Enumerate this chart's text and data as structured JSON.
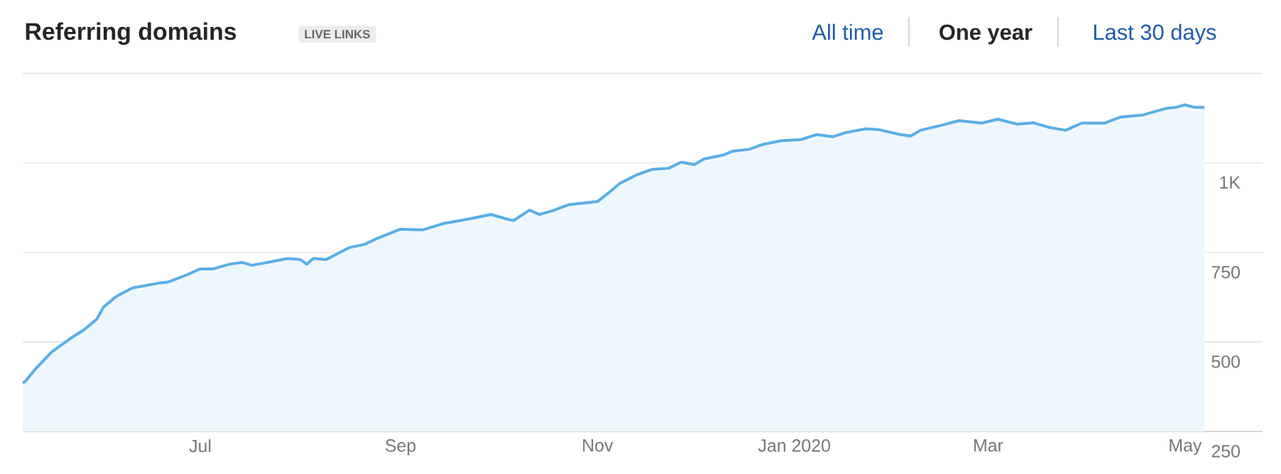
{
  "chart_data": {
    "type": "area",
    "title": "Referring domains",
    "annotations": [
      "LIVE LINKS",
      "All time",
      "One year",
      "Last 30 days"
    ],
    "x": [
      "2019-05-07",
      "2019-05-08",
      "2019-05-11",
      "2019-05-16",
      "2019-05-22",
      "2019-05-26",
      "2019-05-30",
      "2019-06-01",
      "2019-06-05",
      "2019-06-10",
      "2019-06-18",
      "2019-06-21",
      "2019-06-27",
      "2019-07-01",
      "2019-07-05",
      "2019-07-10",
      "2019-07-14",
      "2019-07-17",
      "2019-07-23",
      "2019-07-28",
      "2019-08-01",
      "2019-08-03",
      "2019-08-05",
      "2019-08-09",
      "2019-08-16",
      "2019-08-21",
      "2019-08-25",
      "2019-09-01",
      "2019-09-08",
      "2019-09-14",
      "2019-09-22",
      "2019-09-29",
      "2019-10-04",
      "2019-10-06",
      "2019-10-11",
      "2019-10-14",
      "2019-10-18",
      "2019-10-23",
      "2019-11-01",
      "2019-11-04",
      "2019-11-08",
      "2019-11-13",
      "2019-11-18",
      "2019-11-23",
      "2019-11-27",
      "2019-12-01",
      "2019-12-04",
      "2019-12-10",
      "2019-12-13",
      "2019-12-18",
      "2019-12-22",
      "2019-12-28",
      "2020-01-03",
      "2020-01-08",
      "2020-01-13",
      "2020-01-17",
      "2020-01-23",
      "2020-01-27",
      "2020-02-03",
      "2020-02-06",
      "2020-02-09",
      "2020-02-15",
      "2020-02-21",
      "2020-02-28",
      "2020-03-04",
      "2020-03-10",
      "2020-03-15",
      "2020-03-20",
      "2020-03-25",
      "2020-03-30",
      "2020-04-06",
      "2020-04-11",
      "2020-04-18",
      "2020-04-25",
      "2020-04-28",
      "2020-05-01",
      "2020-05-04",
      "2020-05-07"
    ],
    "series": [
      {
        "color": "#5aaee6",
        "values": [
          385,
          392,
          425,
          472,
          511,
          534,
          564,
          597,
          627,
          651,
          664,
          667,
          688,
          704,
          704,
          717,
          722,
          714,
          724,
          733,
          730,
          717,
          733,
          730,
          763,
          773,
          790,
          815,
          813,
          830,
          843,
          856,
          843,
          839,
          868,
          856,
          866,
          883,
          892,
          913,
          943,
          966,
          982,
          985,
          1002,
          995,
          1011,
          1022,
          1033,
          1038,
          1051,
          1062,
          1065,
          1079,
          1073,
          1085,
          1095,
          1093,
          1079,
          1075,
          1091,
          1104,
          1118,
          1111,
          1122,
          1108,
          1112,
          1099,
          1091,
          1111,
          1111,
          1128,
          1134,
          1152,
          1155,
          1162,
          1155,
          1155
        ]
      }
    ],
    "xlim": [
      "2019-05-07",
      "2020-05-25"
    ],
    "xticks": [
      {
        "value": "2019-07-01",
        "label": "Jul"
      },
      {
        "value": "2019-09-01",
        "label": "Sep"
      },
      {
        "value": "2019-11-01",
        "label": "Nov"
      },
      {
        "value": "2020-01-01",
        "label": "Jan 2020"
      },
      {
        "value": "2020-03-01",
        "label": "Mar"
      },
      {
        "value": "2020-05-01",
        "label": "May"
      }
    ],
    "ylim": [
      250,
      1250
    ],
    "yticks": [
      250,
      500,
      750,
      {
        "value": 1000,
        "label": "1K"
      },
      {
        "value": 1250,
        "label": null
      }
    ],
    "grid": "y"
  }
}
